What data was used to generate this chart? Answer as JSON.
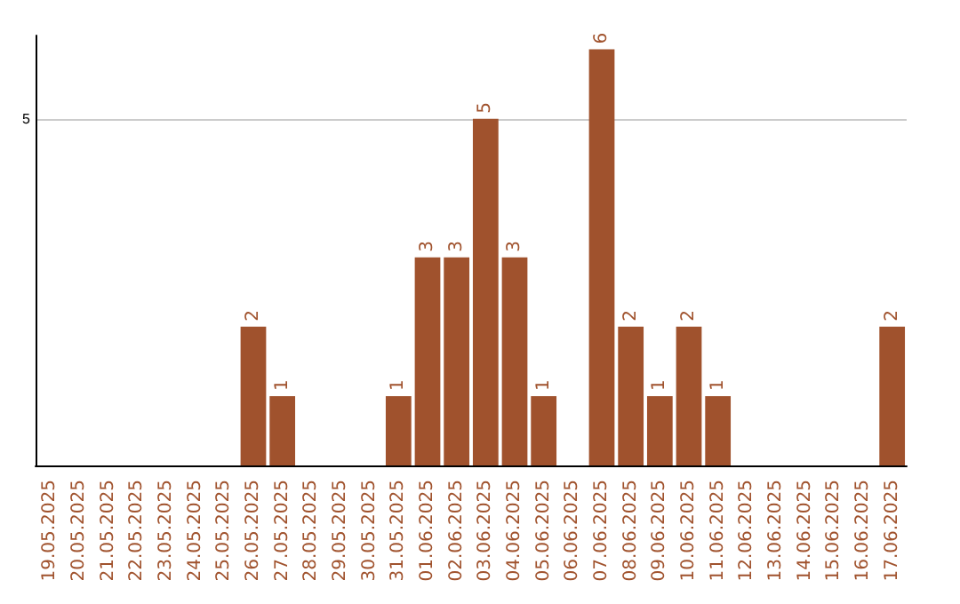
{
  "chart_data": {
    "type": "bar",
    "categories": [
      "19.05.2025",
      "20.05.2025",
      "21.05.2025",
      "22.05.2025",
      "23.05.2025",
      "24.05.2025",
      "25.05.2025",
      "26.05.2025",
      "27.05.2025",
      "28.05.2025",
      "29.05.2025",
      "30.05.2025",
      "31.05.2025",
      "01.06.2025",
      "02.06.2025",
      "03.06.2025",
      "04.06.2025",
      "05.06.2025",
      "06.06.2025",
      "07.06.2025",
      "08.06.2025",
      "09.06.2025",
      "10.06.2025",
      "11.06.2025",
      "12.06.2025",
      "13.06.2025",
      "14.06.2025",
      "15.06.2025",
      "16.06.2025",
      "17.06.2025"
    ],
    "values": [
      0,
      0,
      0,
      0,
      0,
      0,
      0,
      2,
      1,
      0,
      0,
      0,
      1,
      3,
      3,
      5,
      3,
      1,
      0,
      6,
      2,
      1,
      2,
      1,
      0,
      0,
      0,
      0,
      0,
      2
    ],
    "value_labels": [
      null,
      null,
      null,
      null,
      null,
      null,
      null,
      "2",
      "1",
      null,
      null,
      null,
      "1",
      "3",
      "3",
      "5",
      "3",
      "1",
      null,
      "6",
      "2",
      "1",
      "2",
      "1",
      null,
      null,
      null,
      null,
      null,
      "2"
    ],
    "color": "#a0522d",
    "ylim": [
      0,
      6.2
    ],
    "yticks": [
      5
    ],
    "grid": "y"
  }
}
